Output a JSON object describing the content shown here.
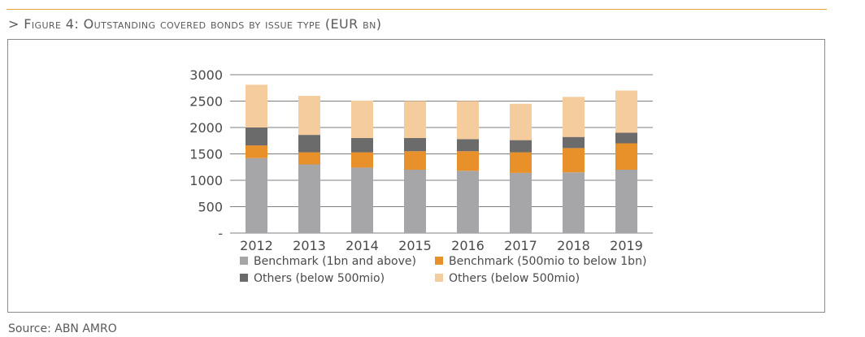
{
  "figure": {
    "title": "> Figure 4: Outstanding covered bonds by issue type (EUR bn)",
    "source": "Source: ABN AMRO"
  },
  "chart_data": {
    "type": "bar",
    "stacked": true,
    "categories": [
      "2012",
      "2013",
      "2014",
      "2015",
      "2016",
      "2017",
      "2018",
      "2019"
    ],
    "series": [
      {
        "name": "Benchmark (1bn and above)",
        "color": "#a6a6a8",
        "values": [
          1420,
          1300,
          1240,
          1200,
          1180,
          1140,
          1150,
          1200
        ]
      },
      {
        "name": "Benchmark (500mio to below 1bn)",
        "color": "#e8902a",
        "values": [
          240,
          230,
          290,
          350,
          370,
          390,
          460,
          500
        ]
      },
      {
        "name": "Others (below 500mio)",
        "color": "#6b6b6b",
        "values": [
          340,
          330,
          270,
          250,
          230,
          230,
          210,
          200
        ]
      },
      {
        "name": "Others (below 500mio)",
        "color": "#f4cc9e",
        "values": [
          810,
          740,
          710,
          700,
          720,
          690,
          760,
          800
        ]
      }
    ],
    "ylim": [
      0,
      3000
    ],
    "yticks": [
      0,
      500,
      1000,
      1500,
      2000,
      2500,
      3000
    ],
    "ytick_labels": [
      "-",
      "500",
      "1000",
      "1500",
      "2000",
      "2500",
      "3000"
    ],
    "grid": true,
    "legend_position": "bottom",
    "title": "",
    "xlabel": "",
    "ylabel": ""
  }
}
